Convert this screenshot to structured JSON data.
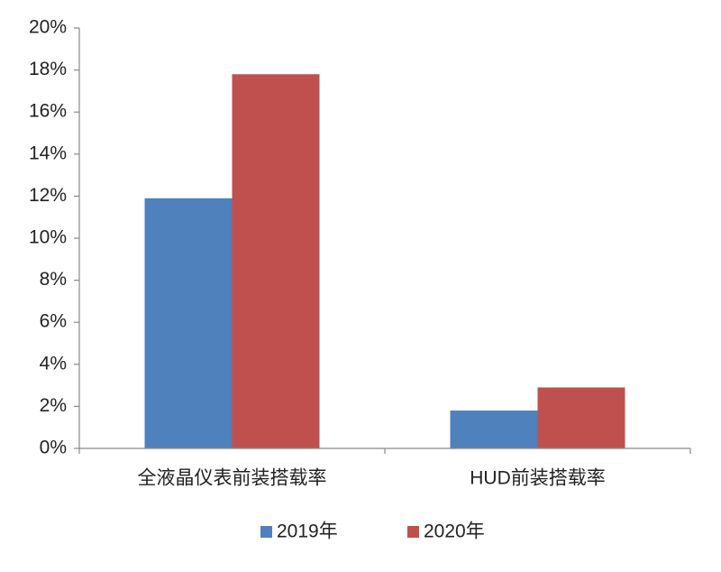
{
  "chart_data": {
    "type": "bar",
    "categories": [
      "全液晶仪表前装搭载率",
      "HUD前装搭载率"
    ],
    "series": [
      {
        "name": "2019年",
        "color": "#4f81bd",
        "values": [
          11.9,
          1.8
        ]
      },
      {
        "name": "2020年",
        "color": "#c0504d",
        "values": [
          17.8,
          2.9
        ]
      }
    ],
    "ylim": [
      0,
      20
    ],
    "yticks": [
      {
        "value": 0,
        "label": "0%"
      },
      {
        "value": 2,
        "label": "2%"
      },
      {
        "value": 4,
        "label": "4%"
      },
      {
        "value": 6,
        "label": "6%"
      },
      {
        "value": 8,
        "label": "8%"
      },
      {
        "value": 10,
        "label": "10%"
      },
      {
        "value": 12,
        "label": "12%"
      },
      {
        "value": 14,
        "label": "14%"
      },
      {
        "value": 16,
        "label": "16%"
      },
      {
        "value": 18,
        "label": "18%"
      },
      {
        "value": 20,
        "label": "20%"
      }
    ],
    "grid": false,
    "legend": "bottom"
  }
}
